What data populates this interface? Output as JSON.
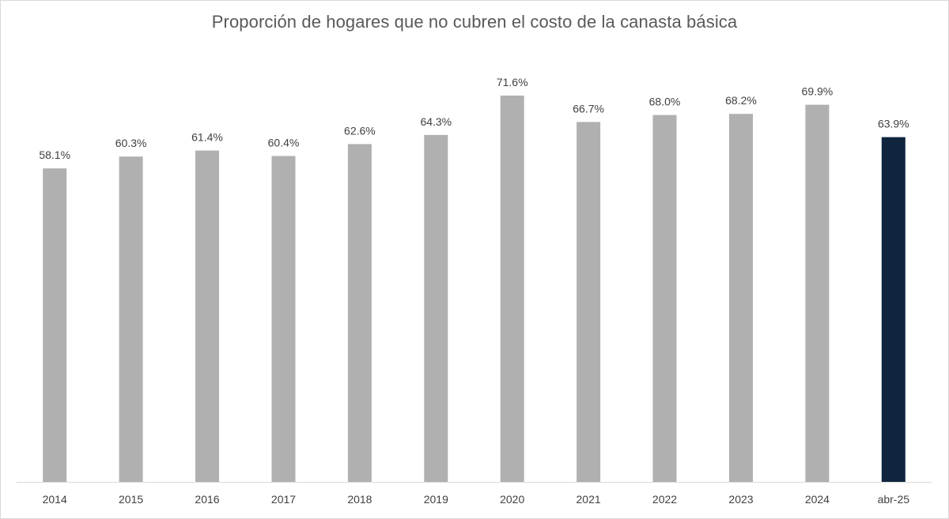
{
  "chart_data": {
    "type": "bar",
    "title": "Proporción de hogares que no cubren el costo de la canasta básica",
    "xlabel": "",
    "ylabel": "",
    "ylim": [
      0,
      80
    ],
    "grid": false,
    "legend": "none",
    "categories": [
      "2014",
      "2015",
      "2016",
      "2017",
      "2018",
      "2019",
      "2020",
      "2021",
      "2022",
      "2023",
      "2024",
      "abr-25"
    ],
    "values": [
      58.1,
      60.3,
      61.4,
      60.4,
      62.6,
      64.3,
      71.6,
      66.7,
      68.0,
      68.2,
      69.9,
      63.9
    ],
    "data_labels": [
      "58.1%",
      "60.3%",
      "61.4%",
      "60.4%",
      "62.6%",
      "64.3%",
      "71.6%",
      "66.7%",
      "68.0%",
      "68.2%",
      "69.9%",
      "63.9%"
    ],
    "colors": {
      "default_bar": "#b0b0b0",
      "highlight_bar": "#0f253e",
      "axis": "#d9d9d9"
    },
    "highlight_index": 11
  }
}
